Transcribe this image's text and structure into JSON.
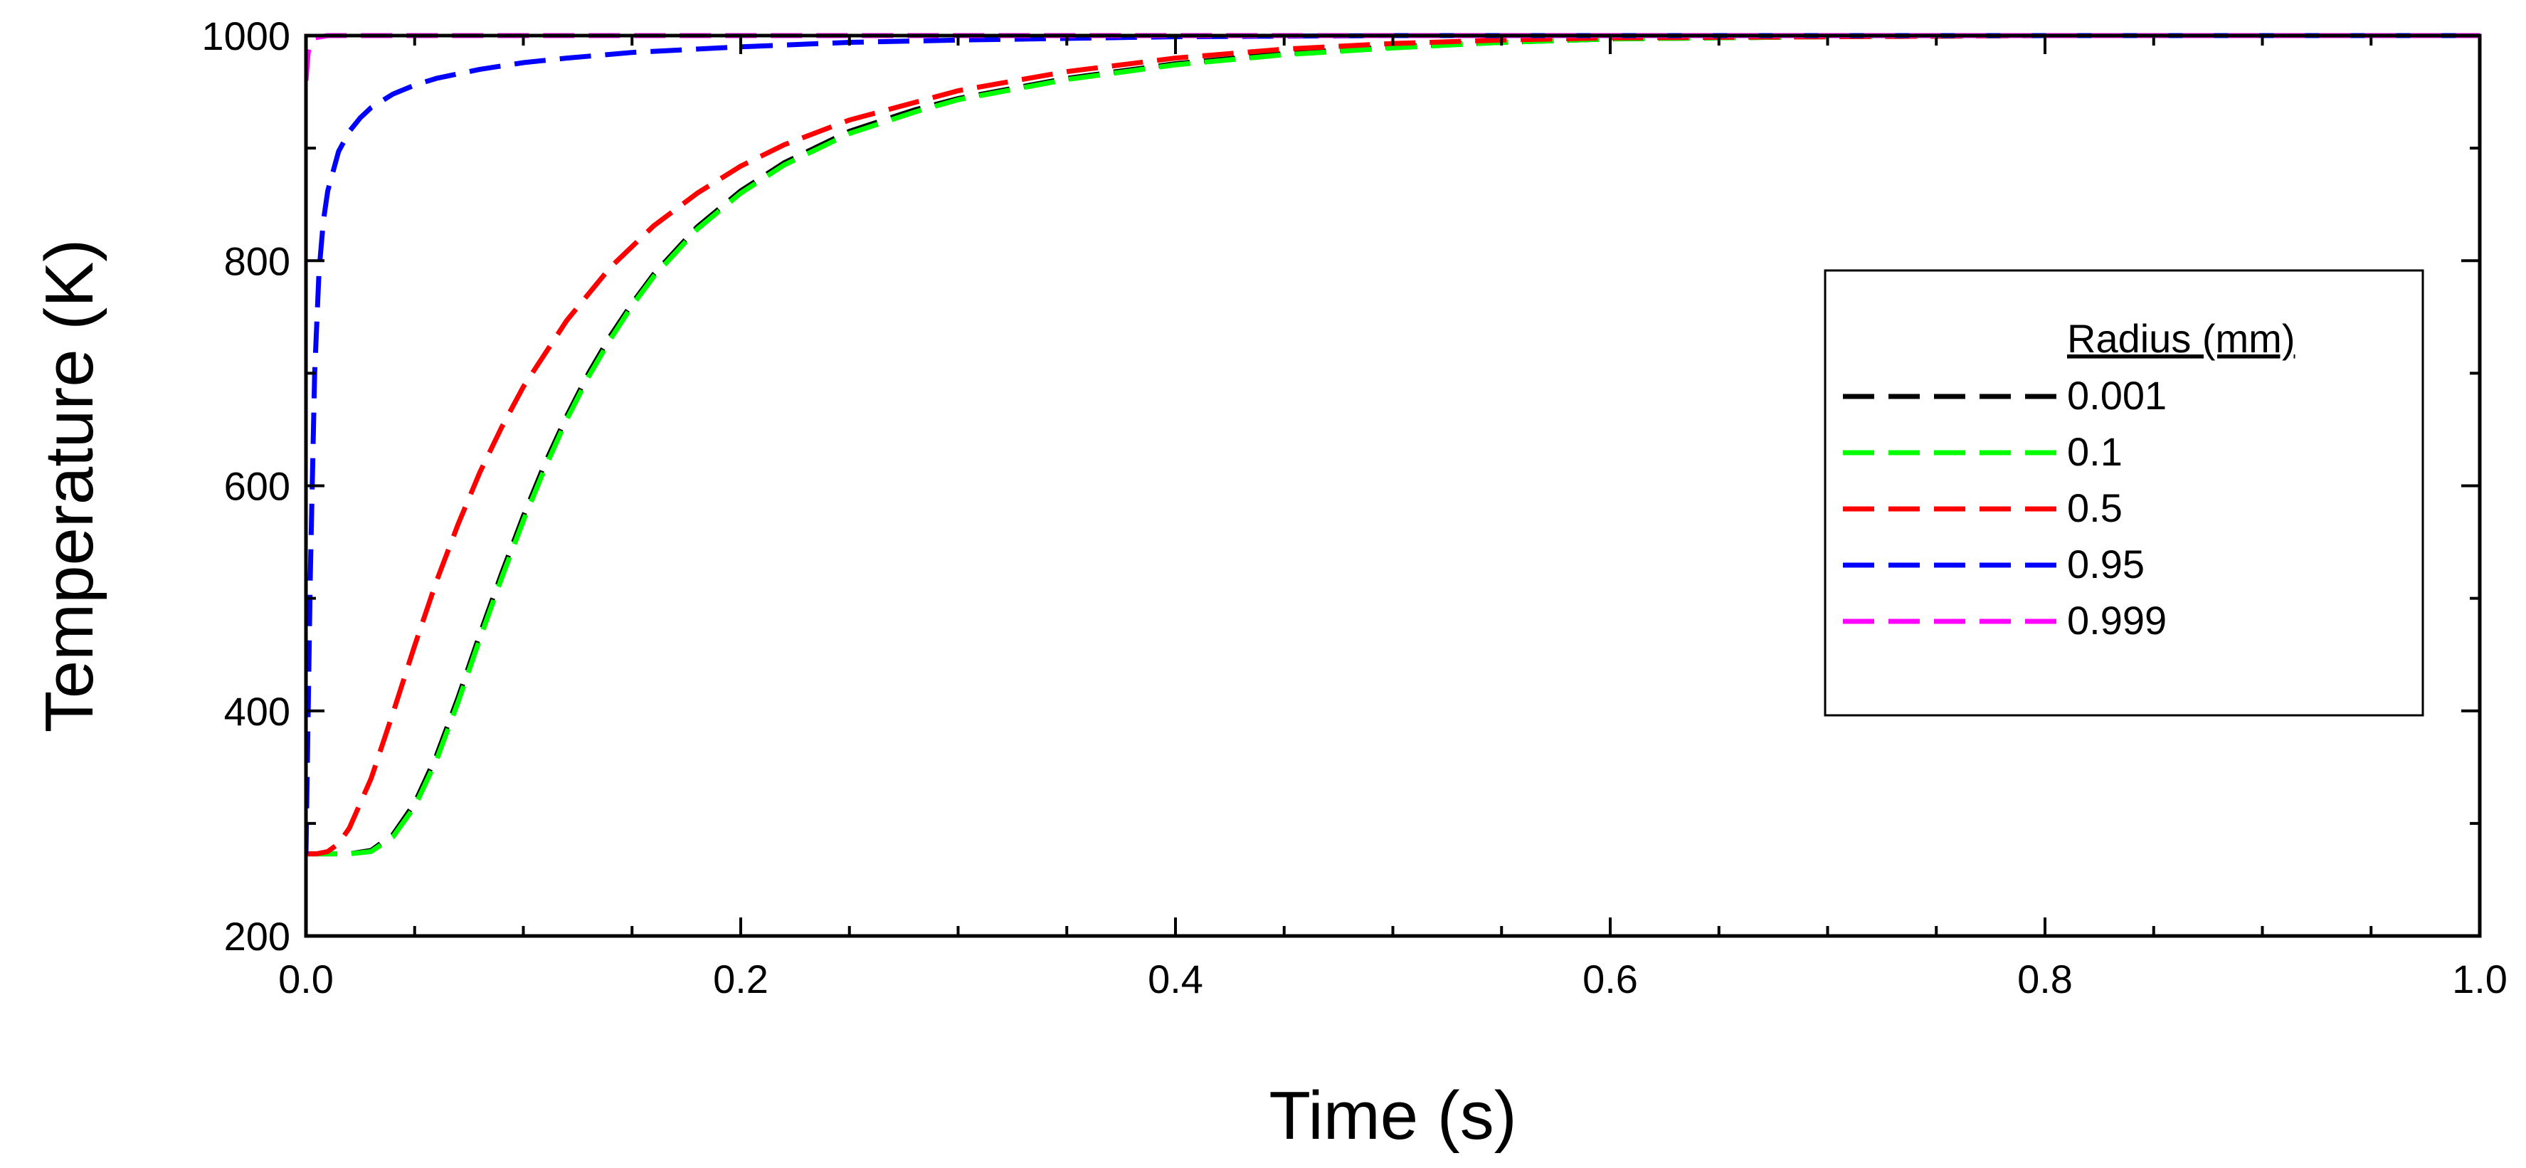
{
  "chart_data": {
    "type": "line",
    "title": "",
    "xlabel": "Time (s)",
    "ylabel": "Temperature (K)",
    "xlim": [
      0,
      1.0
    ],
    "ylim": [
      200,
      1000
    ],
    "x_ticks": [
      0.0,
      0.2,
      0.4,
      0.6,
      0.8,
      1.0
    ],
    "x_tick_labels": [
      "0.0",
      "0.2",
      "0.4",
      "0.6",
      "0.8",
      "1.0"
    ],
    "y_ticks": [
      200,
      400,
      600,
      800,
      1000
    ],
    "y_tick_labels": [
      "200",
      "400",
      "600",
      "800",
      "1000"
    ],
    "grid": false,
    "legend": {
      "title": "Radius (mm)",
      "placement": "right"
    },
    "series": [
      {
        "name": "0.001",
        "color": "#000000",
        "x": [
          0,
          0.01,
          0.02,
          0.03,
          0.04,
          0.05,
          0.06,
          0.07,
          0.08,
          0.09,
          0.1,
          0.11,
          0.12,
          0.13,
          0.14,
          0.15,
          0.16,
          0.18,
          0.2,
          0.22,
          0.25,
          0.28,
          0.3,
          0.35,
          0.4,
          0.45,
          0.5,
          0.55,
          0.6,
          0.7,
          0.8,
          0.9,
          1.0
        ],
        "y": [
          273,
          273,
          273,
          276,
          290,
          318,
          360,
          412,
          468,
          522,
          573,
          620,
          662,
          700,
          733,
          762,
          788,
          830,
          862,
          887,
          915,
          934,
          944,
          962,
          975,
          984,
          990,
          994,
          997,
          999,
          1000,
          1000,
          1000
        ]
      },
      {
        "name": "0.1",
        "color": "#00ff00",
        "x": [
          0,
          0.01,
          0.02,
          0.03,
          0.04,
          0.05,
          0.06,
          0.07,
          0.08,
          0.09,
          0.1,
          0.11,
          0.12,
          0.13,
          0.14,
          0.15,
          0.16,
          0.18,
          0.2,
          0.22,
          0.25,
          0.28,
          0.3,
          0.35,
          0.4,
          0.45,
          0.5,
          0.55,
          0.6,
          0.7,
          0.8,
          0.9,
          1.0
        ],
        "y": [
          273,
          273,
          273,
          275,
          288,
          315,
          356,
          408,
          464,
          518,
          569,
          616,
          659,
          697,
          730,
          760,
          786,
          828,
          860,
          885,
          913,
          932,
          943,
          961,
          974,
          983,
          989,
          994,
          997,
          999,
          1000,
          1000,
          1000
        ]
      },
      {
        "name": "0.5",
        "color": "#ff0000",
        "x": [
          0,
          0.005,
          0.01,
          0.015,
          0.02,
          0.03,
          0.04,
          0.05,
          0.06,
          0.07,
          0.08,
          0.09,
          0.1,
          0.12,
          0.14,
          0.16,
          0.18,
          0.2,
          0.22,
          0.25,
          0.3,
          0.35,
          0.4,
          0.45,
          0.5,
          0.55,
          0.6,
          0.7,
          0.8,
          0.9,
          1.0
        ],
        "y": [
          273,
          273,
          275,
          282,
          296,
          340,
          398,
          458,
          515,
          566,
          612,
          652,
          688,
          747,
          794,
          831,
          860,
          884,
          903,
          925,
          951,
          968,
          980,
          988,
          993,
          996,
          998,
          999,
          1000,
          1000,
          1000
        ]
      },
      {
        "name": "0.95",
        "color": "#0000ff",
        "x": [
          0,
          0.002,
          0.004,
          0.006,
          0.008,
          0.01,
          0.015,
          0.02,
          0.025,
          0.03,
          0.04,
          0.05,
          0.06,
          0.08,
          0.1,
          0.12,
          0.15,
          0.2,
          0.25,
          0.3,
          0.4,
          0.5,
          0.6,
          0.8,
          1.0
        ],
        "y": [
          273,
          520,
          700,
          790,
          835,
          862,
          897,
          915,
          927,
          936,
          948,
          956,
          962,
          970,
          976,
          980,
          985,
          990,
          994,
          996,
          999,
          1000,
          1000,
          1000,
          1000
        ]
      },
      {
        "name": "0.999",
        "color": "#ff00ff",
        "x": [
          0,
          0.001,
          0.002,
          0.004,
          0.01,
          0.05,
          0.1,
          0.2,
          0.4,
          0.6,
          0.8,
          1.0
        ],
        "y": [
          960,
          985,
          993,
          998,
          1000,
          1000,
          1000,
          1000,
          1000,
          1000,
          1000,
          1000
        ]
      }
    ]
  }
}
